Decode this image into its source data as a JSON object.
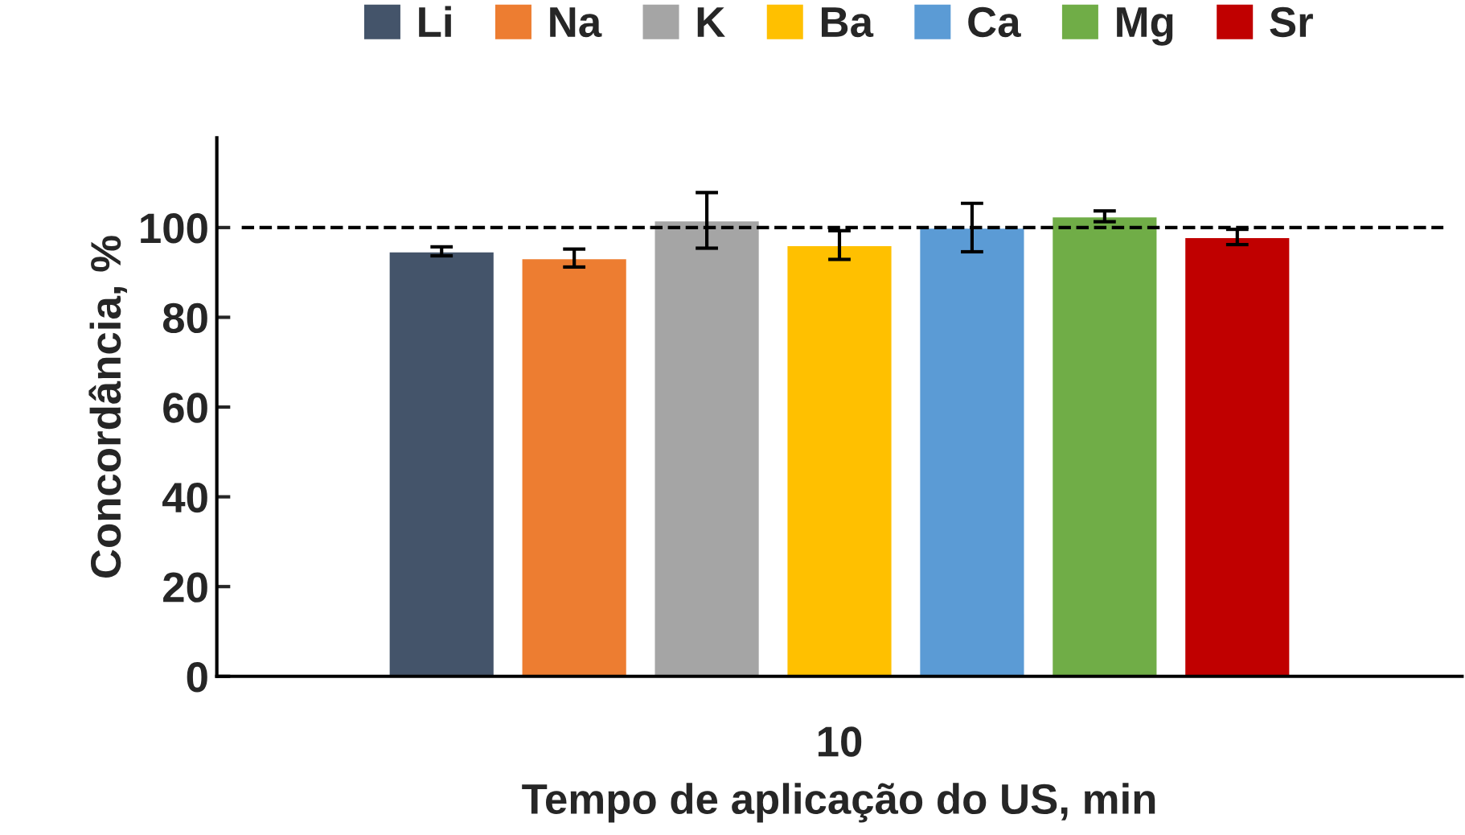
{
  "chart_data": {
    "type": "bar",
    "xlabel": "Tempo de aplicação do US, min",
    "ylabel": "Concordância, %",
    "categories": [
      "10"
    ],
    "series": [
      {
        "name": "Li",
        "color": "#44546a",
        "values": [
          94.7
        ],
        "errors": [
          1
        ]
      },
      {
        "name": "Na",
        "color": "#ed7d31",
        "values": [
          93.2
        ],
        "errors": [
          2
        ]
      },
      {
        "name": "K",
        "color": "#a5a5a5",
        "values": [
          101.6
        ],
        "errors": [
          6.2
        ]
      },
      {
        "name": "Ba",
        "color": "#ffc000",
        "values": [
          96.1
        ],
        "errors": [
          3.2
        ]
      },
      {
        "name": "Ca",
        "color": "#5b9bd5",
        "values": [
          100
        ],
        "errors": [
          5.4
        ]
      },
      {
        "name": "Mg",
        "color": "#70ad47",
        "values": [
          102.5
        ],
        "errors": [
          1.2
        ]
      },
      {
        "name": "Sr",
        "color": "#c00000",
        "values": [
          97.9
        ],
        "errors": [
          1.7
        ]
      }
    ],
    "ylim": [
      0,
      120
    ],
    "yticks": [
      0,
      20,
      40,
      60,
      80,
      100
    ],
    "grid": false,
    "legend": "top",
    "ref_lines": [
      {
        "axis": "y",
        "value": 100,
        "line_style": "dashed",
        "color": "#000000"
      }
    ]
  }
}
